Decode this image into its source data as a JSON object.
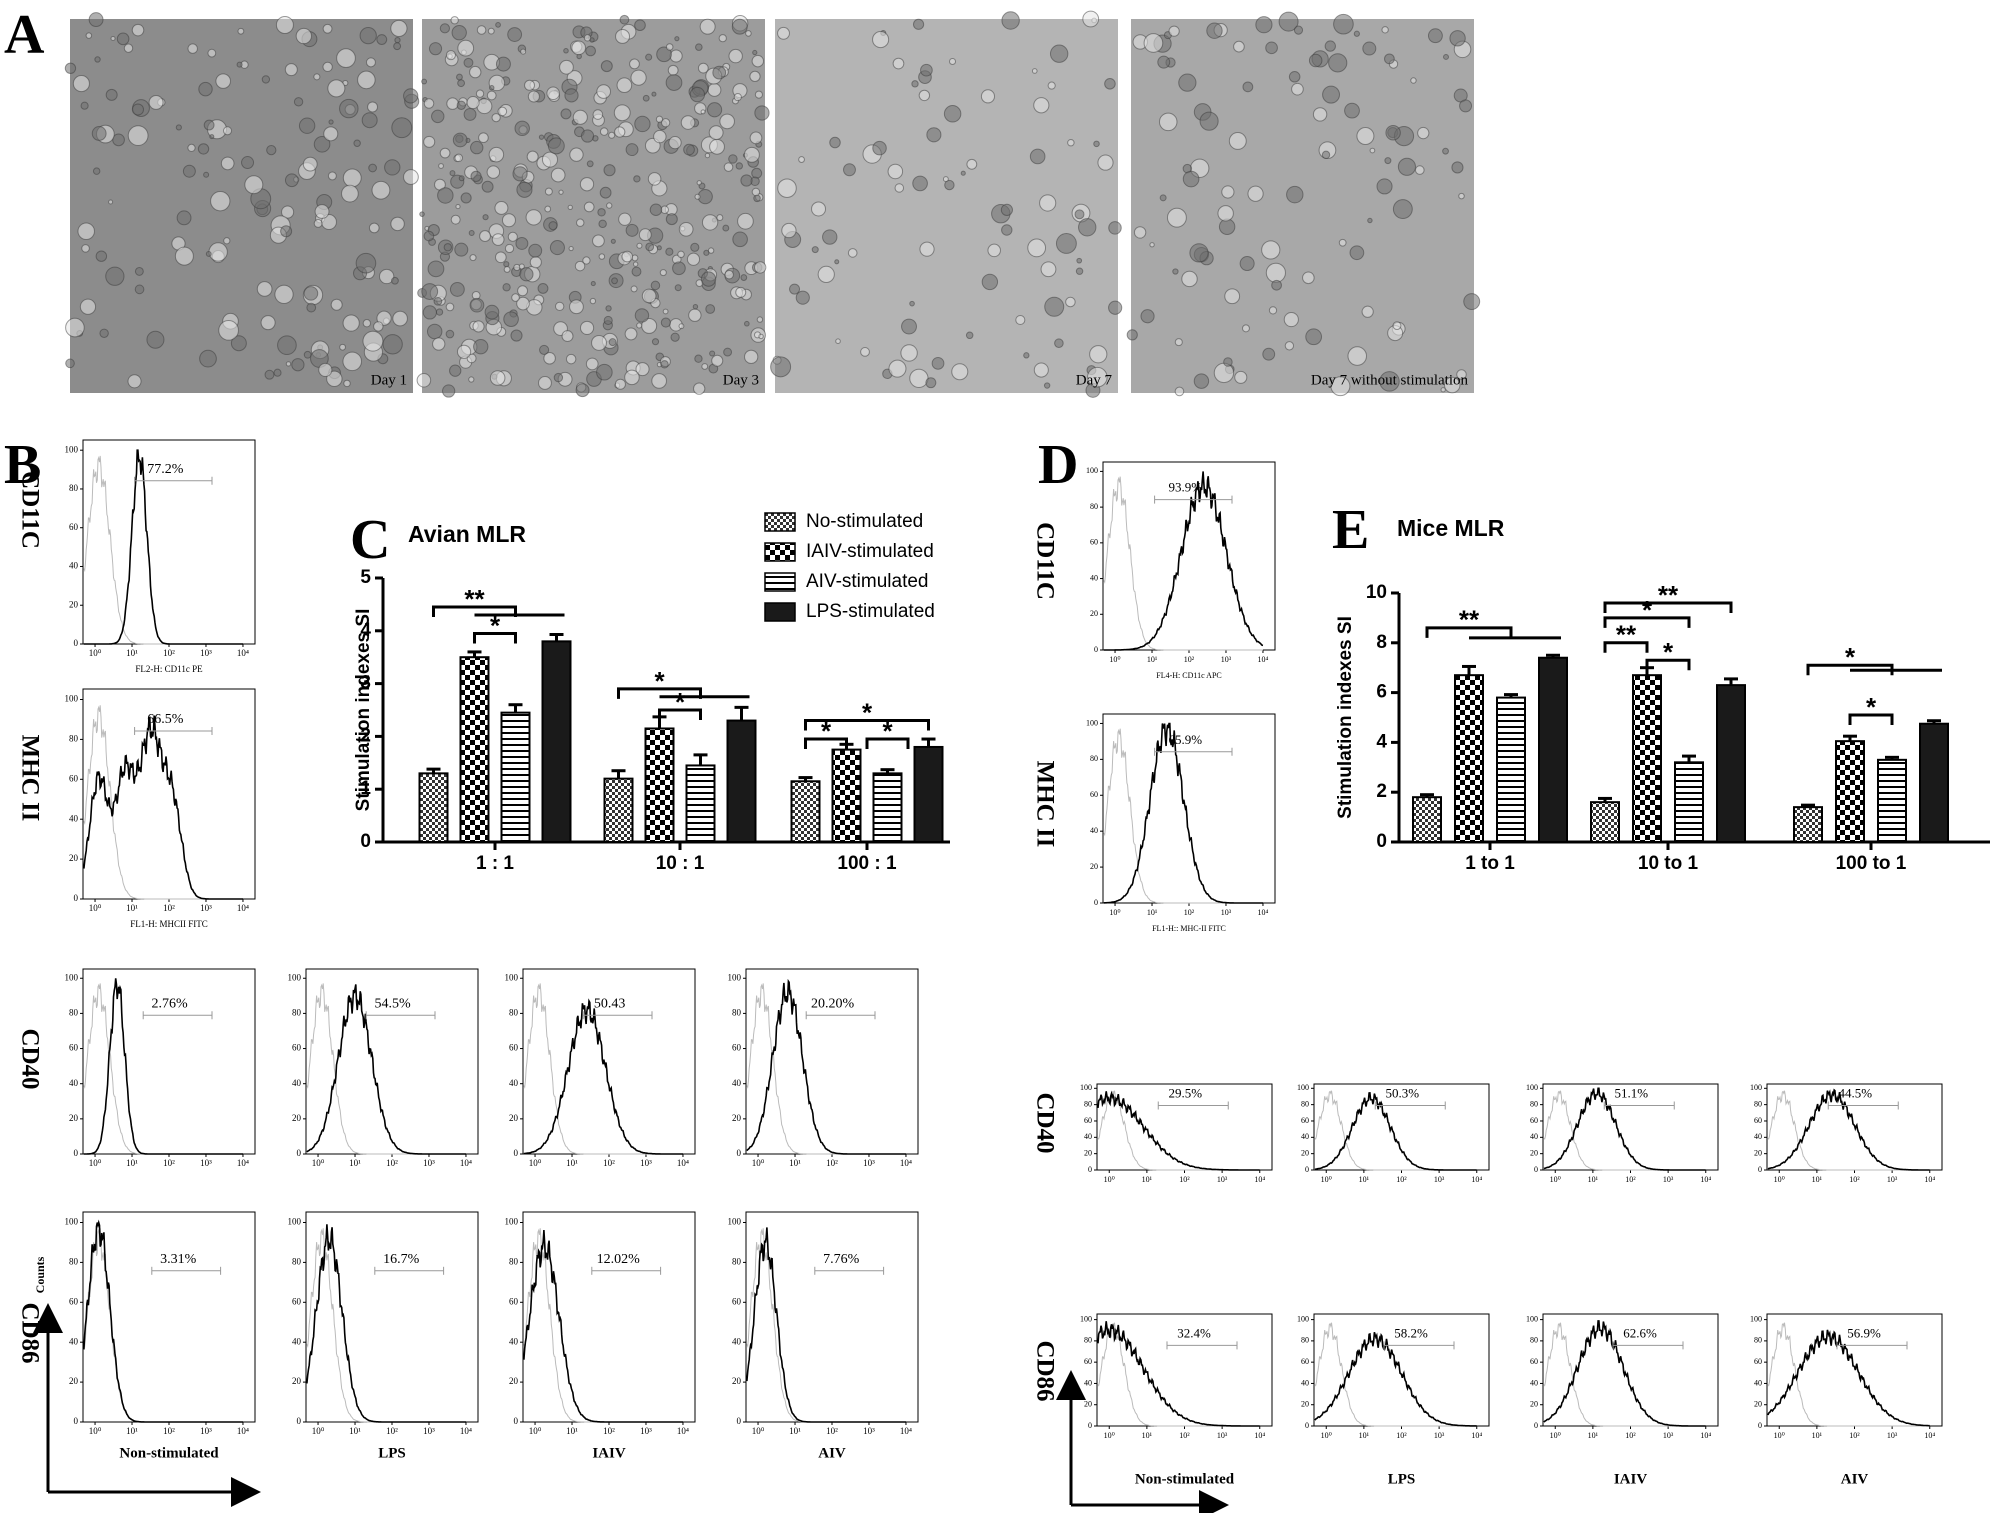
{
  "panel_labels": [
    "A",
    "B",
    "C",
    "D",
    "E"
  ],
  "micrographs": [
    "Day 1",
    "Day 3",
    "Day 7",
    "Day 7 without stimulation"
  ],
  "flow": {
    "yticks": [
      0,
      20,
      40,
      60,
      80,
      100
    ],
    "xticks": [
      "10⁰",
      "10¹",
      "10²",
      "10³",
      "10⁴"
    ],
    "count_label": "Counts",
    "B": {
      "markers": [
        "CD11C",
        "MHC II",
        "CD40",
        "CD86"
      ],
      "channels": [
        "FL2-H: CD11c PE",
        "FL1-H: MHCII FITC"
      ],
      "single": [
        "77.2%",
        "66.5%"
      ],
      "conditions": [
        "Non-stimulated",
        "LPS",
        "IAIV",
        "AIV"
      ],
      "cd40": [
        "2.76%",
        "54.5%",
        "50.43",
        "20.20%"
      ],
      "cd86": [
        "3.31%",
        "16.7%",
        "12.02%",
        "7.76%"
      ]
    },
    "D": {
      "markers": [
        "CD11C",
        "MHC II",
        "CD40",
        "CD86"
      ],
      "channels": [
        "FL4-H: CD11c APC",
        "FL1-H:: MHC-II FITC"
      ],
      "single": [
        "93.9%",
        "65.9%"
      ],
      "conditions": [
        "Non-stimulated",
        "LPS",
        "IAIV",
        "AIV"
      ],
      "cd40": [
        "29.5%",
        "50.3%",
        "51.1%",
        "44.5%"
      ],
      "cd86": [
        "32.4%",
        "58.2%",
        "62.6%",
        "56.9%"
      ]
    }
  },
  "chart_data": [
    {
      "type": "bar",
      "title": "Avian MLR",
      "y_label": "Stimulation indexes SI",
      "categories": [
        "1 : 1",
        "10 : 1",
        "100 : 1"
      ],
      "ylim": [
        0,
        5
      ],
      "yticks": [
        0,
        1,
        2,
        3,
        4,
        5
      ],
      "legend": true,
      "series": [
        {
          "name": "No-stimulated",
          "color": "#000000",
          "pattern": "dots",
          "values": [
            1.3,
            1.2,
            1.15
          ],
          "errors": [
            0.08,
            0.15,
            0.07
          ]
        },
        {
          "name": "IAIV-stimulated",
          "color": "#000000",
          "pattern": "checker",
          "values": [
            3.5,
            2.15,
            1.75
          ],
          "errors": [
            0.1,
            0.22,
            0.1
          ]
        },
        {
          "name": "AIV-stimulated",
          "color": "#000000",
          "pattern": "hlines",
          "values": [
            2.45,
            1.45,
            1.3
          ],
          "errors": [
            0.15,
            0.2,
            0.07
          ]
        },
        {
          "name": "LPS-stimulated",
          "color": "#1a1a1a",
          "pattern": "solid",
          "values": [
            3.8,
            2.3,
            1.8
          ],
          "errors": [
            0.13,
            0.25,
            0.15
          ]
        }
      ],
      "annotations": [
        "**",
        "*",
        "*",
        "*",
        "*",
        "*",
        "*"
      ]
    },
    {
      "type": "bar",
      "title": "Mice MLR",
      "y_label": "Stimulation indexes SI",
      "categories": [
        "1 to 1",
        "10 to 1",
        "100 to 1"
      ],
      "ylim": [
        0,
        10
      ],
      "yticks": [
        0,
        2,
        4,
        6,
        8,
        10
      ],
      "legend": false,
      "series": [
        {
          "color": "#000000",
          "pattern": "dots",
          "values": [
            1.8,
            1.6,
            1.4
          ],
          "errors": [
            0.1,
            0.15,
            0.08
          ]
        },
        {
          "color": "#000000",
          "pattern": "checker",
          "values": [
            6.7,
            6.7,
            4.05
          ],
          "errors": [
            0.35,
            0.3,
            0.2
          ]
        },
        {
          "color": "#000000",
          "pattern": "hlines",
          "values": [
            5.8,
            3.2,
            3.3
          ],
          "errors": [
            0.12,
            0.25,
            0.1
          ]
        },
        {
          "color": "#1a1a1a",
          "pattern": "solid",
          "values": [
            7.4,
            6.3,
            4.75
          ],
          "errors": [
            0.1,
            0.25,
            0.12
          ]
        }
      ],
      "annotations": [
        "**",
        "**",
        "*",
        "**",
        "*",
        "*",
        "*"
      ]
    }
  ]
}
